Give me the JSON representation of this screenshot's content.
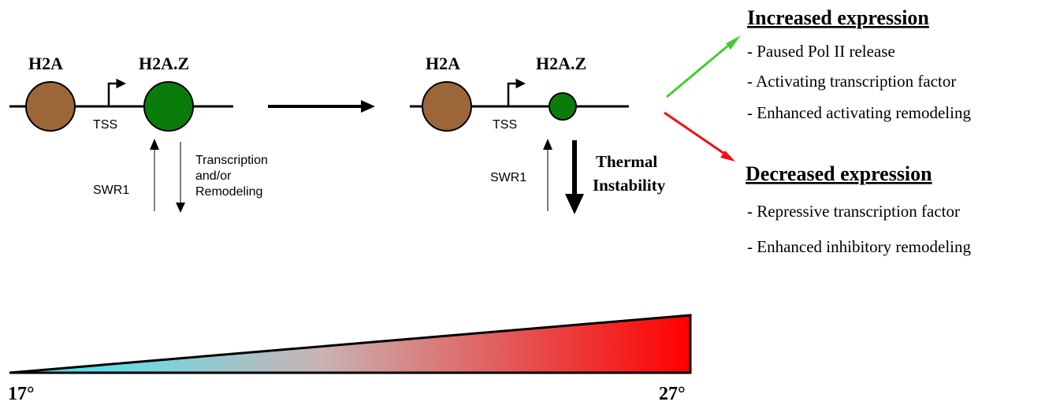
{
  "left_panel": {
    "h2a_label": "H2A",
    "h2az_label": "H2A.Z",
    "tss_label": "TSS",
    "swr1_label": "SWR1",
    "transcription_lines": [
      "Transcription",
      "and/or",
      "Remodeling"
    ]
  },
  "right_panel": {
    "h2a_label": "H2A",
    "h2az_label": "H2A.Z",
    "tss_label": "TSS",
    "swr1_label": "SWR1",
    "thermal_lines": [
      "Thermal",
      "Instability"
    ]
  },
  "outcomes": {
    "increased": {
      "title": "Increased expression",
      "items": [
        "- Paused Pol II release",
        "- Activating transcription factor",
        "- Enhanced activating remodeling"
      ]
    },
    "decreased": {
      "title": "Decreased expression",
      "items": [
        "- Repressive transcription factor",
        "- Enhanced inhibitory remodeling"
      ]
    }
  },
  "temperature": {
    "low": "17°",
    "high": "27°"
  },
  "colors": {
    "h2a": "#9c6638",
    "h2az": "#0a7c0a",
    "increase_arrow": "#44cc33",
    "decrease_arrow": "#ee1111",
    "gradient_start": "#33eeff",
    "gradient_mid": "#c7b5b5",
    "gradient_end": "#ff0000"
  }
}
